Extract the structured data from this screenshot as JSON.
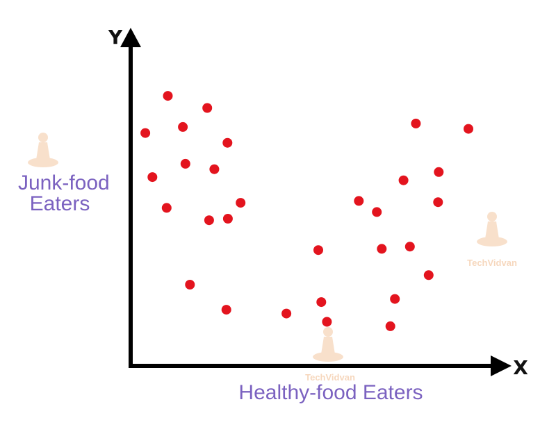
{
  "chart_data": {
    "type": "scatter",
    "title": "",
    "xlabel": "X",
    "ylabel": "Y",
    "y_group_label": [
      "Junk-food",
      "Eaters"
    ],
    "x_group_label": "Healthy-food Eaters",
    "grid": false,
    "xlim": [
      0,
      100
    ],
    "ylim": [
      0,
      100
    ],
    "point_color": "#e3141e",
    "series": [
      {
        "points": [
          [
            3.9,
            73.4
          ],
          [
            9.9,
            85.1
          ],
          [
            13.9,
            75.3
          ],
          [
            20.4,
            81.3
          ],
          [
            25.8,
            70.3
          ],
          [
            5.8,
            59.5
          ],
          [
            14.6,
            63.7
          ],
          [
            22.3,
            62.0
          ],
          [
            29.3,
            51.4
          ],
          [
            9.6,
            49.8
          ],
          [
            20.9,
            45.9
          ],
          [
            25.9,
            46.4
          ],
          [
            15.8,
            25.6
          ],
          [
            25.5,
            17.7
          ],
          [
            41.5,
            16.5
          ],
          [
            50.0,
            36.5
          ],
          [
            50.8,
            20.1
          ],
          [
            52.3,
            13.9
          ],
          [
            60.8,
            52.0
          ],
          [
            65.6,
            48.5
          ],
          [
            76.0,
            76.4
          ],
          [
            72.7,
            58.5
          ],
          [
            66.9,
            36.9
          ],
          [
            74.4,
            37.6
          ],
          [
            82.1,
            61.1
          ],
          [
            81.9,
            51.6
          ],
          [
            79.4,
            28.6
          ],
          [
            70.4,
            21.1
          ],
          [
            69.2,
            12.5
          ],
          [
            90.0,
            74.7
          ]
        ]
      }
    ]
  },
  "watermark": {
    "brand_a": "Tech",
    "brand_b": "Vidvan",
    "color": "#f3c7a2",
    "icon": "meditating-figure-icon"
  },
  "colors": {
    "axis": "#000000",
    "label": "#7b62c0"
  }
}
